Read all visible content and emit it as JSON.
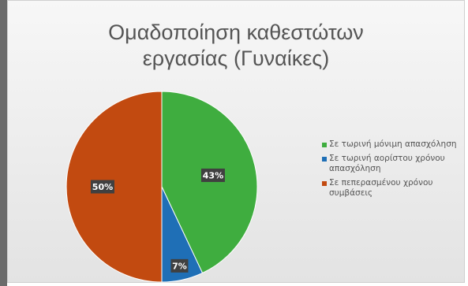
{
  "chart_data": {
    "type": "pie",
    "title": "Ομαδοποίηση καθεστώτων\nεργασίας (Γυναίκες)",
    "categories": [
      "Σε τωρινή μόνιμη απασχόληση",
      "Σε τωρινή αορίστου χρόνου απασχόληση",
      "Σε πεπερασμένου χρόνου συμβάσεις"
    ],
    "values": [
      43,
      7,
      50
    ],
    "data_labels": [
      "43%",
      "7%",
      "50%"
    ],
    "colors": [
      "#3fad3f",
      "#1f6fb6",
      "#c24a10"
    ],
    "legend_position": "right"
  }
}
